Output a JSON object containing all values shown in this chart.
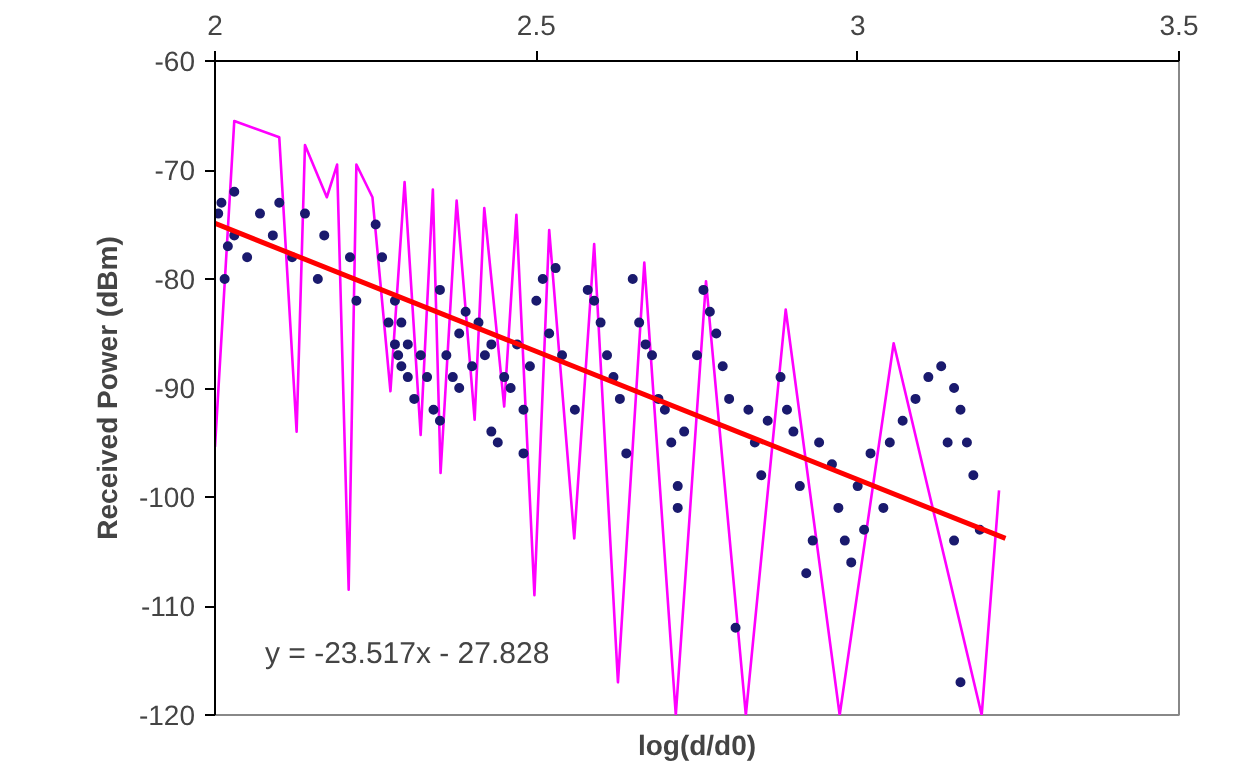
{
  "chart_data": {
    "type": "scatter",
    "xlabel": "log(d/d0)",
    "ylabel": "Received Power (dBm)",
    "xlim": [
      2,
      3.5
    ],
    "xticks": [
      2,
      2.5,
      3,
      3.5
    ],
    "ylim": [
      -120,
      -60
    ],
    "yticks": [
      -120,
      -110,
      -100,
      -90,
      -80,
      -70,
      -60
    ],
    "grid": false,
    "annotations": [
      "y = -23.517x - 27.828"
    ],
    "series": [
      {
        "type": "line",
        "color": "#ff00ff",
        "x": [
          2.0,
          2.03,
          2.1,
          2.127,
          2.14,
          2.174,
          2.19,
          2.208,
          2.22,
          2.245,
          2.273,
          2.295,
          2.32,
          2.339,
          2.351,
          2.376,
          2.404,
          2.419,
          2.45,
          2.469,
          2.497,
          2.52,
          2.559,
          2.59,
          2.627,
          2.668,
          2.717,
          2.764,
          2.826,
          2.888,
          2.972,
          3.056,
          3.193,
          3.22
        ],
        "values": [
          -95.4,
          -65.5,
          -67,
          -94,
          -67.7,
          -72.5,
          -69.5,
          -108.5,
          -69.5,
          -72.5,
          -90.3,
          -71.1,
          -94.3,
          -71.8,
          -97.8,
          -72.8,
          -92.9,
          -73.5,
          -91.7,
          -74.1,
          -109,
          -75.5,
          -103.8,
          -76.8,
          -117,
          -78.5,
          -120,
          -80.2,
          -120,
          -82.8,
          -120,
          -85.9,
          -120,
          -99.4
        ]
      },
      {
        "color": "#1a1a6e",
        "marker": "circle",
        "x": [
          2.005,
          2.01,
          2.02,
          2.015,
          2.03,
          2.03,
          2.05,
          2.07,
          2.09,
          2.1,
          2.12,
          2.14,
          2.16,
          2.17,
          2.21,
          2.22,
          2.25,
          2.26,
          2.27,
          2.28,
          2.28,
          2.285,
          2.29,
          2.29,
          2.3,
          2.3,
          2.31,
          2.32,
          2.33,
          2.34,
          2.35,
          2.35,
          2.36,
          2.37,
          2.38,
          2.38,
          2.39,
          2.4,
          2.41,
          2.42,
          2.43,
          2.43,
          2.44,
          2.45,
          2.46,
          2.47,
          2.48,
          2.48,
          2.49,
          2.5,
          2.51,
          2.52,
          2.53,
          2.54,
          2.56,
          2.58,
          2.59,
          2.6,
          2.61,
          2.62,
          2.63,
          2.64,
          2.65,
          2.66,
          2.67,
          2.68,
          2.69,
          2.7,
          2.71,
          2.72,
          2.72,
          2.73,
          2.75,
          2.76,
          2.77,
          2.78,
          2.79,
          2.8,
          2.81,
          2.83,
          2.84,
          2.85,
          2.86,
          2.88,
          2.89,
          2.9,
          2.91,
          2.92,
          2.93,
          2.94,
          2.96,
          2.97,
          2.98,
          2.99,
          3.0,
          3.01,
          3.02,
          3.04,
          3.05,
          3.07,
          3.09,
          3.11,
          3.13,
          3.15,
          3.16,
          3.17,
          3.18,
          3.19,
          3.15,
          3.16,
          3.14
        ],
        "values": [
          -74,
          -73,
          -77,
          -80,
          -72,
          -76,
          -78,
          -74,
          -76,
          -73,
          -78,
          -74,
          -80,
          -76,
          -78,
          -82,
          -75,
          -78,
          -84,
          -82,
          -86,
          -87,
          -88,
          -84,
          -89,
          -86,
          -91,
          -87,
          -89,
          -92,
          -93,
          -81,
          -87,
          -89,
          -85,
          -90,
          -83,
          -88,
          -84,
          -87,
          -86,
          -94,
          -95,
          -89,
          -90,
          -86,
          -92,
          -96,
          -88,
          -82,
          -80,
          -85,
          -79,
          -87,
          -92,
          -81,
          -82,
          -84,
          -87,
          -89,
          -91,
          -96,
          -80,
          -84,
          -86,
          -87,
          -91,
          -92,
          -95,
          -99,
          -101,
          -94,
          -87,
          -81,
          -83,
          -85,
          -88,
          -91,
          -112,
          -92,
          -95,
          -98,
          -93,
          -89,
          -92,
          -94,
          -99,
          -107,
          -104,
          -95,
          -97,
          -101,
          -104,
          -106,
          -99,
          -103,
          -96,
          -101,
          -95,
          -93,
          -91,
          -89,
          -88,
          -90,
          -92,
          -95,
          -98,
          -103,
          -104,
          -117,
          -95
        ]
      },
      {
        "type": "line",
        "color": "#ff0000",
        "x": [
          2,
          3.23
        ],
        "values": [
          -74.9,
          -103.8
        ]
      }
    ]
  }
}
